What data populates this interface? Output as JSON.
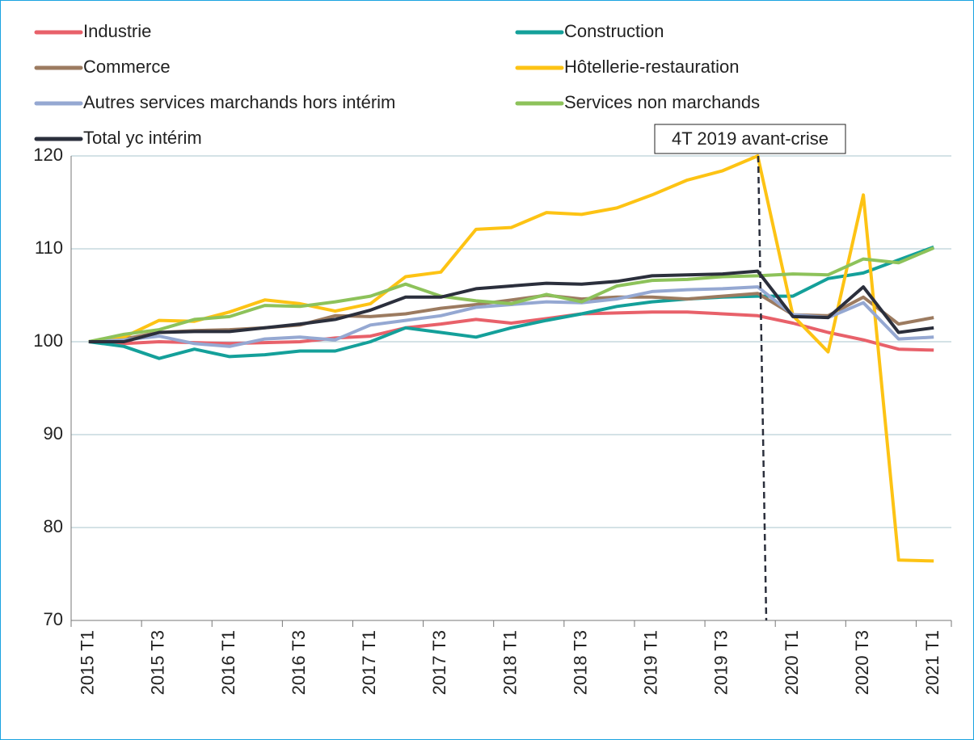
{
  "chart_data": {
    "type": "line",
    "categories": [
      "2015 T1",
      null,
      "2015 T3",
      null,
      "2016 T1",
      null,
      "2016 T3",
      null,
      "2017 T1",
      null,
      "2017 T3",
      null,
      "2018 T1",
      null,
      "2018 T3",
      null,
      "2019 T1",
      null,
      "2019 T3",
      null,
      "2020 T1",
      null,
      "2020 T3",
      null,
      "2021 T1"
    ],
    "series": [
      {
        "name": "Industrie",
        "color": "#e8616a",
        "values": [
          100,
          99.8,
          100.0,
          99.9,
          99.8,
          99.9,
          100.0,
          100.4,
          100.6,
          101.5,
          101.9,
          102.4,
          102.0,
          102.5,
          103.0,
          103.1,
          103.2,
          103.2,
          103.0,
          102.8,
          102.0,
          101.0,
          100.2,
          99.2,
          99.1
        ]
      },
      {
        "name": "Construction",
        "color": "#14a09a",
        "values": [
          100,
          99.5,
          98.2,
          99.2,
          98.4,
          98.6,
          99.0,
          99.0,
          100.0,
          101.5,
          101.0,
          100.5,
          101.5,
          102.3,
          103.0,
          103.8,
          104.3,
          104.6,
          104.8,
          104.9,
          104.9,
          106.8,
          107.4,
          108.8,
          110.2
        ]
      },
      {
        "name": "Commerce",
        "color": "#9c7b60",
        "values": [
          100,
          100.3,
          101.0,
          101.2,
          101.3,
          101.5,
          101.8,
          102.8,
          102.7,
          103.0,
          103.6,
          104.0,
          104.5,
          105.0,
          104.6,
          104.8,
          104.8,
          104.6,
          104.9,
          105.2,
          102.9,
          102.8,
          104.8,
          101.9,
          102.6
        ]
      },
      {
        "name": "Hôtellerie-restauration",
        "color": "#fdc314",
        "values": [
          100,
          100.5,
          102.3,
          102.2,
          103.2,
          104.5,
          104.1,
          103.3,
          104.1,
          107.0,
          107.5,
          112.1,
          112.3,
          113.9,
          113.7,
          114.4,
          115.8,
          117.4,
          118.4,
          120,
          102.8,
          98.9,
          115.8,
          76.5,
          76.4
        ]
      },
      {
        "name": "Autres services marchands hors intérim",
        "color": "#95a8d2",
        "values": [
          100,
          100.2,
          100.6,
          99.8,
          99.5,
          100.3,
          100.5,
          100.2,
          101.8,
          102.3,
          102.8,
          103.7,
          104.0,
          104.3,
          104.2,
          104.6,
          105.4,
          105.6,
          105.7,
          105.9,
          102.9,
          102.6,
          104.2,
          100.3,
          100.5
        ]
      },
      {
        "name": "Services non marchands",
        "color": "#8dc25a",
        "values": [
          100,
          100.8,
          101.3,
          102.4,
          102.7,
          103.9,
          103.8,
          104.3,
          104.9,
          106.2,
          104.9,
          104.4,
          104.1,
          105.1,
          104.3,
          106.0,
          106.6,
          106.7,
          107.0,
          107.1,
          107.3,
          107.2,
          108.9,
          108.5,
          110.1
        ]
      },
      {
        "name": "Total yc intérim",
        "color": "#2b2f3c",
        "values": [
          100,
          100.0,
          101.0,
          101.1,
          101.1,
          101.5,
          101.9,
          102.4,
          103.4,
          104.8,
          104.8,
          105.7,
          106.0,
          106.3,
          106.2,
          106.5,
          107.1,
          107.2,
          107.3,
          107.6,
          102.7,
          102.6,
          105.9,
          101.0,
          101.5
        ]
      }
    ],
    "annotation": "4T 2019 avant-crise",
    "ylim": [
      70,
      120
    ],
    "yticks": [
      70,
      80,
      90,
      100,
      110,
      120
    ],
    "grid": true
  }
}
